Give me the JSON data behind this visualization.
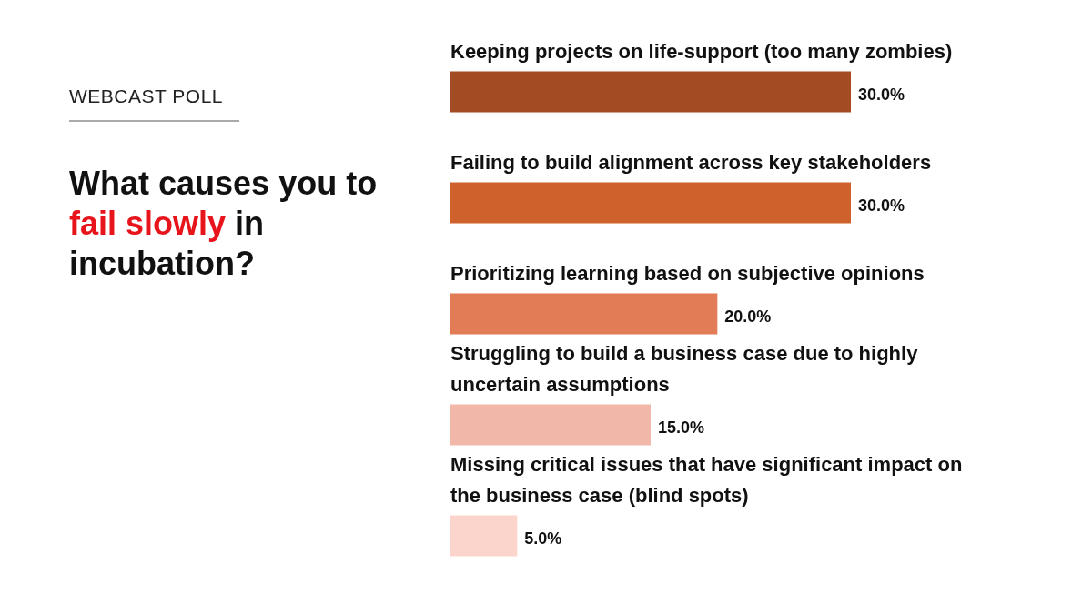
{
  "chart_data": {
    "type": "bar",
    "orientation": "horizontal",
    "subtitle": "WEBCAST POLL",
    "title": "What causes you to fail slowly in incubation?",
    "categories": [
      "Keeping projects on life-support (too many zombies)",
      "Failing to build alignment across key stakeholders",
      "Prioritizing learning based on subjective opinions",
      "Struggling to build a business case due to highly uncertain assumptions",
      "Missing critical issues that have significant impact on the business case (blind spots)"
    ],
    "values": [
      30.0,
      30.0,
      20.0,
      15.0,
      5.0
    ],
    "colors": [
      "#a34b22",
      "#cf622c",
      "#e27c57",
      "#f1b7a8",
      "#fbd5cc"
    ],
    "value_labels": [
      "30.0%",
      "30.0%",
      "20.0%",
      "15.0%",
      "5.0%"
    ],
    "tick_labels": false
  }
}
